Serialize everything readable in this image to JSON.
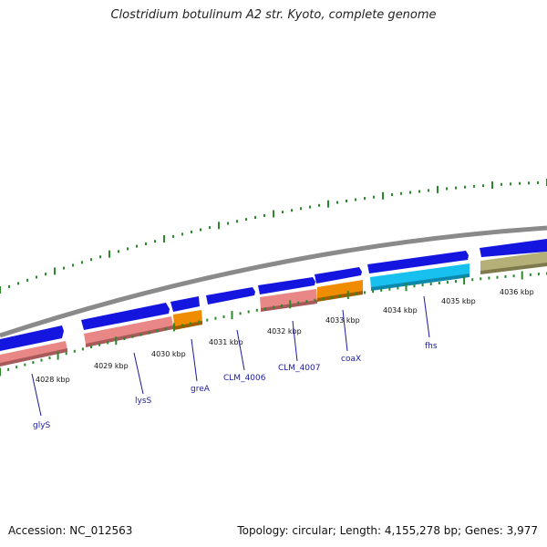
{
  "title": "Clostridium botulinum A2 str. Kyoto, complete genome",
  "footer": {
    "accession": "Accession: NC_012563",
    "summary": "Topology: circular; Length: 4,155,278 bp; Genes: 3,977"
  },
  "colors": {
    "backbone": "#8a8a8a",
    "tick": "#2a8a2a",
    "forward_gene": "#1515e0",
    "tRNA_like_pink": "#e98787",
    "orange": "#f08c00",
    "cyan": "#18c0f0",
    "olive": "#b5b077",
    "label": "#1a1aa0"
  },
  "scale": {
    "ticks": [
      {
        "label": "4028 kbp"
      },
      {
        "label": "4029 kbp"
      },
      {
        "label": "4030 kbp"
      },
      {
        "label": "4031 kbp"
      },
      {
        "label": "4032 kbp"
      },
      {
        "label": "4033 kbp"
      },
      {
        "label": "4034 kbp"
      },
      {
        "label": "4035 kbp"
      },
      {
        "label": "4036 kbp"
      }
    ]
  },
  "genes": {
    "labels": [
      "glyS",
      "lysS",
      "greA",
      "CLM_4006",
      "CLM_4007",
      "coaX",
      "fhs"
    ]
  }
}
